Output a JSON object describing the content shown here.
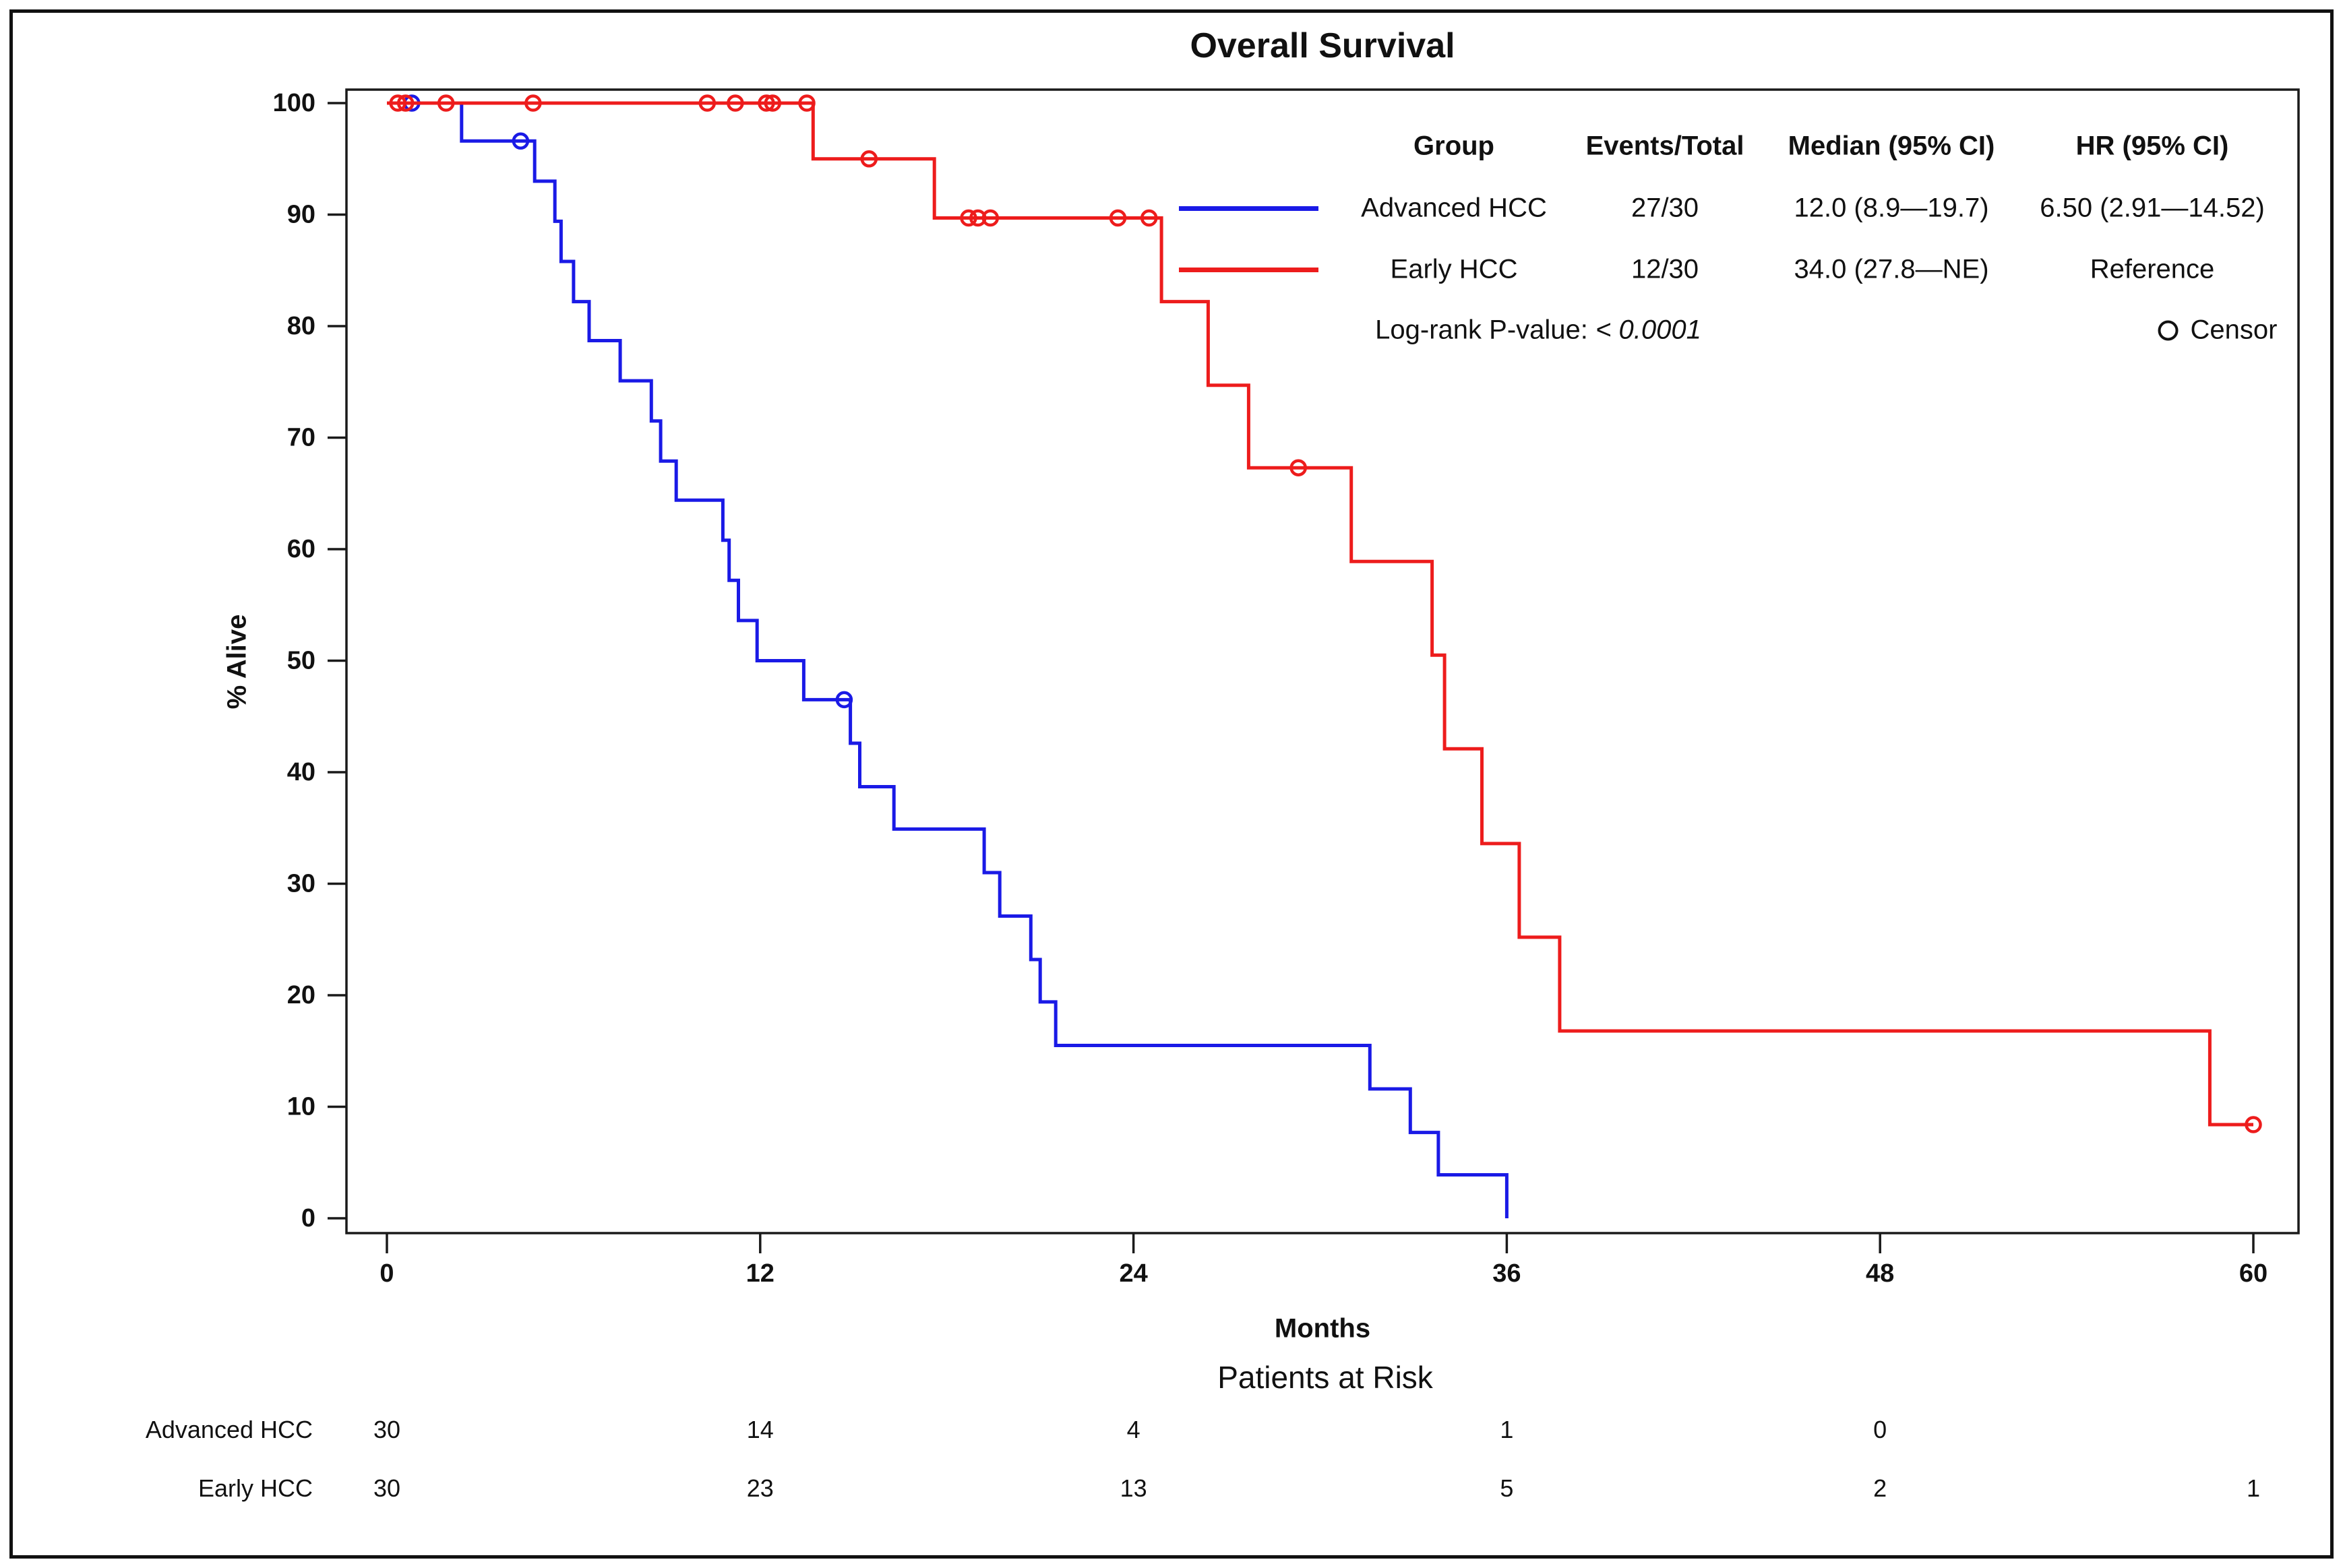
{
  "title": "Overall Survival",
  "axes": {
    "y_label": "% Alive",
    "x_label": "Months",
    "y_ticks": [
      0,
      10,
      20,
      30,
      40,
      50,
      60,
      70,
      80,
      90,
      100
    ],
    "x_ticks": [
      0,
      12,
      24,
      36,
      48,
      60
    ],
    "x_range": [
      0,
      60
    ],
    "y_range": [
      0,
      100
    ]
  },
  "legend": {
    "headers": {
      "group": "Group",
      "events": "Events/Total",
      "median": "Median (95% CI)",
      "hr": "HR (95% CI)"
    },
    "rows": [
      {
        "group": "Advanced HCC",
        "events": "27/30",
        "median": "12.0 (8.9—19.7)",
        "hr": "6.50 (2.91—14.52)"
      },
      {
        "group": "Early HCC",
        "events": "12/30",
        "median": "34.0 (27.8—NE)",
        "hr": "Reference"
      }
    ],
    "logrank_label": "Log-rank P-value:",
    "logrank_value": "< 0.0001",
    "censor_label": "Censor"
  },
  "risk_table": {
    "title": "Patients at Risk",
    "months": [
      0,
      12,
      24,
      36,
      48,
      60
    ],
    "rows": [
      {
        "label": "Advanced HCC",
        "counts": [
          30,
          14,
          4,
          1,
          0,
          null
        ]
      },
      {
        "label": "Early HCC",
        "counts": [
          30,
          23,
          13,
          5,
          2,
          1
        ]
      }
    ]
  },
  "chart_data": {
    "type": "line",
    "subtype": "kaplan-meier-step",
    "title": "Overall Survival",
    "xlabel": "Months",
    "ylabel": "% Alive",
    "xlim": [
      0,
      60
    ],
    "ylim": [
      0,
      100
    ],
    "grid": false,
    "legend_position": "top-right-inside",
    "series": [
      {
        "name": "Advanced HCC",
        "color": "#1a1ae6",
        "events_total": "27/30",
        "median_ci": "12.0 (8.9—19.7)",
        "hr_ci": "6.50 (2.91—14.52)",
        "x_end": 36,
        "steps": [
          [
            2.4,
            96.6
          ],
          [
            4.75,
            93.0
          ],
          [
            5.4,
            89.4
          ],
          [
            5.6,
            85.8
          ],
          [
            6.0,
            82.2
          ],
          [
            6.5,
            78.7
          ],
          [
            7.5,
            75.1
          ],
          [
            8.5,
            71.5
          ],
          [
            8.8,
            67.9
          ],
          [
            9.3,
            64.4
          ],
          [
            10.8,
            60.8
          ],
          [
            11.0,
            57.2
          ],
          [
            11.3,
            53.6
          ],
          [
            11.9,
            50.0
          ],
          [
            13.4,
            46.5
          ],
          [
            14.9,
            42.6
          ],
          [
            15.2,
            38.7
          ],
          [
            16.3,
            34.9
          ],
          [
            19.2,
            31.0
          ],
          [
            19.7,
            27.1
          ],
          [
            20.7,
            23.2
          ],
          [
            21.0,
            19.4
          ],
          [
            21.5,
            15.5
          ],
          [
            31.6,
            11.6
          ],
          [
            32.9,
            7.7
          ],
          [
            33.8,
            3.9
          ],
          [
            36.0,
            0
          ]
        ],
        "censors": [
          [
            0.8,
            100
          ],
          [
            4.3,
            96.6
          ],
          [
            14.7,
            46.5
          ]
        ]
      },
      {
        "name": "Early HCC",
        "color": "#ed1c1c",
        "events_total": "12/30",
        "median_ci": "34.0 (27.8—NE)",
        "hr_ci": "Reference",
        "x_end": 60,
        "steps": [
          [
            13.7,
            95.0
          ],
          [
            17.6,
            89.7
          ],
          [
            24.9,
            82.2
          ],
          [
            26.4,
            74.7
          ],
          [
            27.7,
            67.3
          ],
          [
            31.0,
            58.9
          ],
          [
            33.6,
            50.5
          ],
          [
            34.0,
            42.1
          ],
          [
            35.2,
            33.6
          ],
          [
            36.4,
            25.2
          ],
          [
            37.7,
            16.8
          ],
          [
            58.6,
            8.4
          ]
        ],
        "censors": [
          [
            0.35,
            100
          ],
          [
            0.6,
            100
          ],
          [
            1.9,
            100
          ],
          [
            4.7,
            100
          ],
          [
            10.3,
            100
          ],
          [
            11.2,
            100
          ],
          [
            12.2,
            100
          ],
          [
            12.4,
            100
          ],
          [
            13.5,
            100
          ],
          [
            15.5,
            95.0
          ],
          [
            18.7,
            89.7
          ],
          [
            19.0,
            89.7
          ],
          [
            19.4,
            89.7
          ],
          [
            23.5,
            89.7
          ],
          [
            24.5,
            89.7
          ],
          [
            29.3,
            67.3
          ],
          [
            60.0,
            8.4
          ]
        ]
      }
    ],
    "logrank_p": "< 0.0001"
  }
}
